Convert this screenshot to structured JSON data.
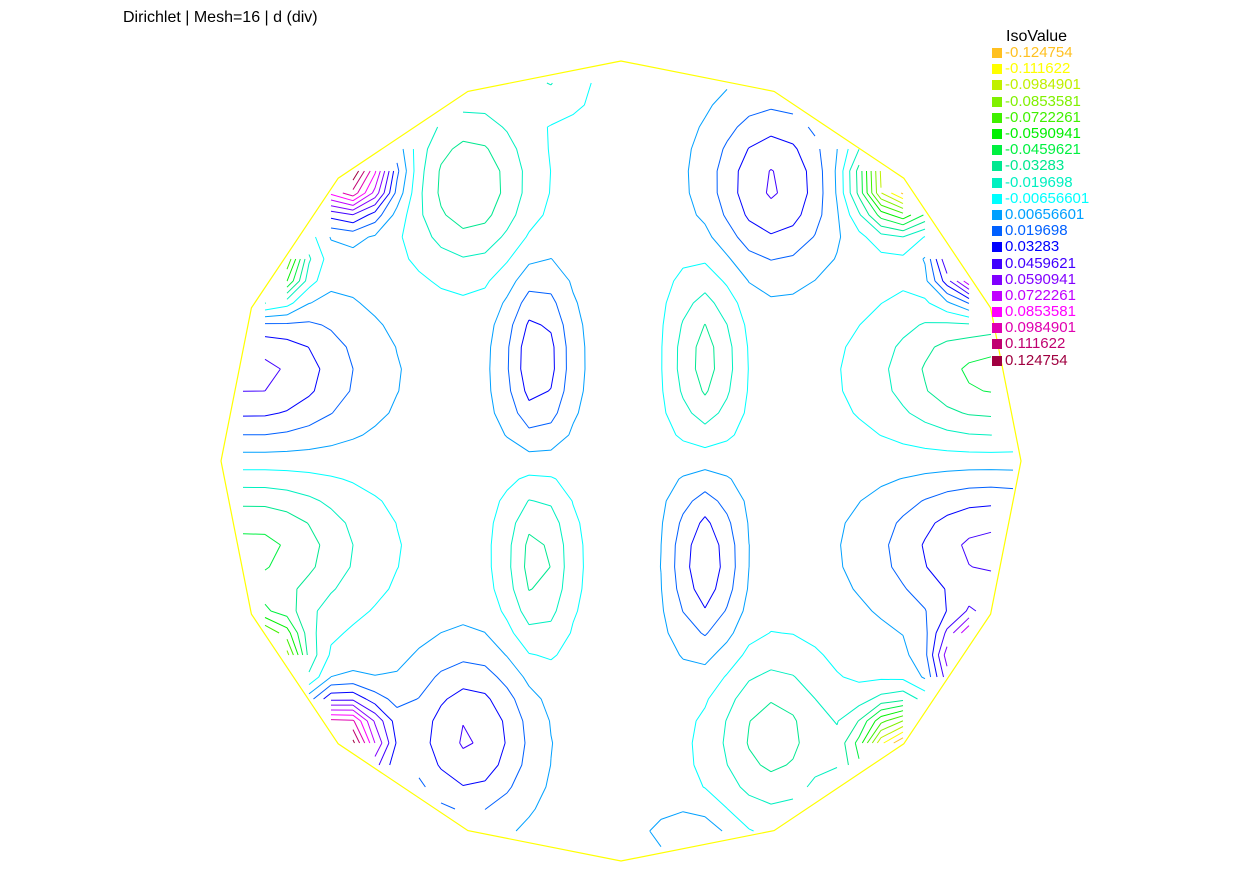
{
  "title": "Dirichlet | Mesh=16 | d (div)",
  "chart_data": {
    "type": "contour",
    "title": "Dirichlet | Mesh=16 | d (div)",
    "domain": "circular (polygon boundary)",
    "legend": {
      "title": "IsoValue",
      "placement": "top-right",
      "entries": [
        {
          "value": -0.124754,
          "label": "-0.124754",
          "color": "#ffc020"
        },
        {
          "value": -0.111622,
          "label": "-0.111622",
          "color": "#ffff00"
        },
        {
          "value": -0.0984901,
          "label": "-0.0984901",
          "color": "#c0f000"
        },
        {
          "value": -0.0853581,
          "label": "-0.0853581",
          "color": "#80f000"
        },
        {
          "value": -0.0722261,
          "label": "-0.0722261",
          "color": "#40f000"
        },
        {
          "value": -0.0590941,
          "label": "-0.0590941",
          "color": "#00f000"
        },
        {
          "value": -0.0459621,
          "label": "-0.0459621",
          "color": "#00f040"
        },
        {
          "value": -0.03283,
          "label": "-0.03283",
          "color": "#00e890"
        },
        {
          "value": -0.019698,
          "label": "-0.019698",
          "color": "#00f0c0"
        },
        {
          "value": -0.00656601,
          "label": "-0.00656601",
          "color": "#00ffff"
        },
        {
          "value": 0.00656601,
          "label": "0.00656601",
          "color": "#00a0ff"
        },
        {
          "value": 0.019698,
          "label": "0.019698",
          "color": "#0060ff"
        },
        {
          "value": 0.03283,
          "label": "0.03283",
          "color": "#0000ff"
        },
        {
          "value": 0.0459621,
          "label": "0.0459621",
          "color": "#4000ff"
        },
        {
          "value": 0.0590941,
          "label": "0.0590941",
          "color": "#8000ff"
        },
        {
          "value": 0.0722261,
          "label": "0.0722261",
          "color": "#c000ff"
        },
        {
          "value": 0.0853581,
          "label": "0.0853581",
          "color": "#ff00ff"
        },
        {
          "value": 0.0984901,
          "label": "0.0984901",
          "color": "#e000b0"
        },
        {
          "value": 0.111622,
          "label": "0.111622",
          "color": "#c00070"
        },
        {
          "value": 0.124754,
          "label": "0.124754",
          "color": "#a00040"
        }
      ]
    },
    "boundary_color": "#ffff00"
  }
}
